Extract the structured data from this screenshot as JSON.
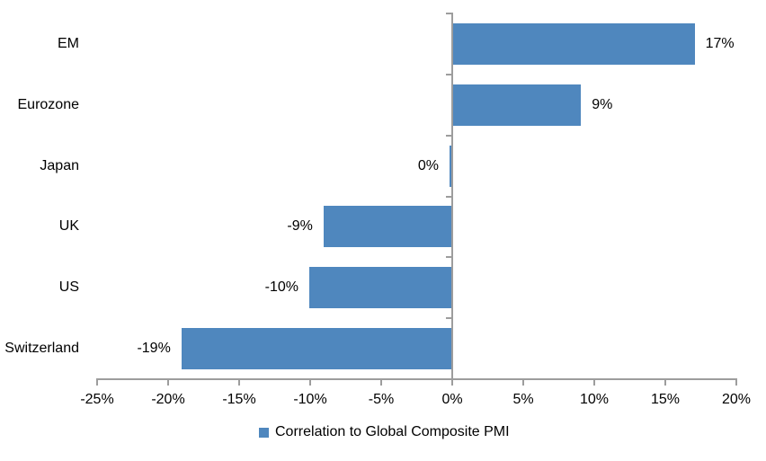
{
  "chart_data": {
    "type": "bar",
    "orientation": "horizontal",
    "title": "",
    "categories": [
      "EM",
      "Eurozone",
      "Japan",
      "UK",
      "US",
      "Switzerland"
    ],
    "series": [
      {
        "name": "Correlation to Global Composite PMI",
        "values": [
          17,
          9,
          0,
          -9,
          -10,
          -19
        ],
        "labels": [
          "17%",
          "9%",
          "0%",
          "-9%",
          "-10%",
          "-19%"
        ]
      }
    ],
    "xlim": [
      -25,
      20
    ],
    "x_ticks": [
      -25,
      -20,
      -15,
      -10,
      -5,
      0,
      5,
      10,
      15,
      20
    ],
    "x_tick_labels": [
      "-25%",
      "-20%",
      "-15%",
      "-10%",
      "-5%",
      "0%",
      "5%",
      "10%",
      "15%",
      "20%"
    ],
    "grid": false,
    "legend_position": "bottom",
    "colors": {
      "bar": "#4F87BE",
      "axis": "#9D9D9D",
      "text": "#000000",
      "background": "#FFFFFF"
    }
  }
}
